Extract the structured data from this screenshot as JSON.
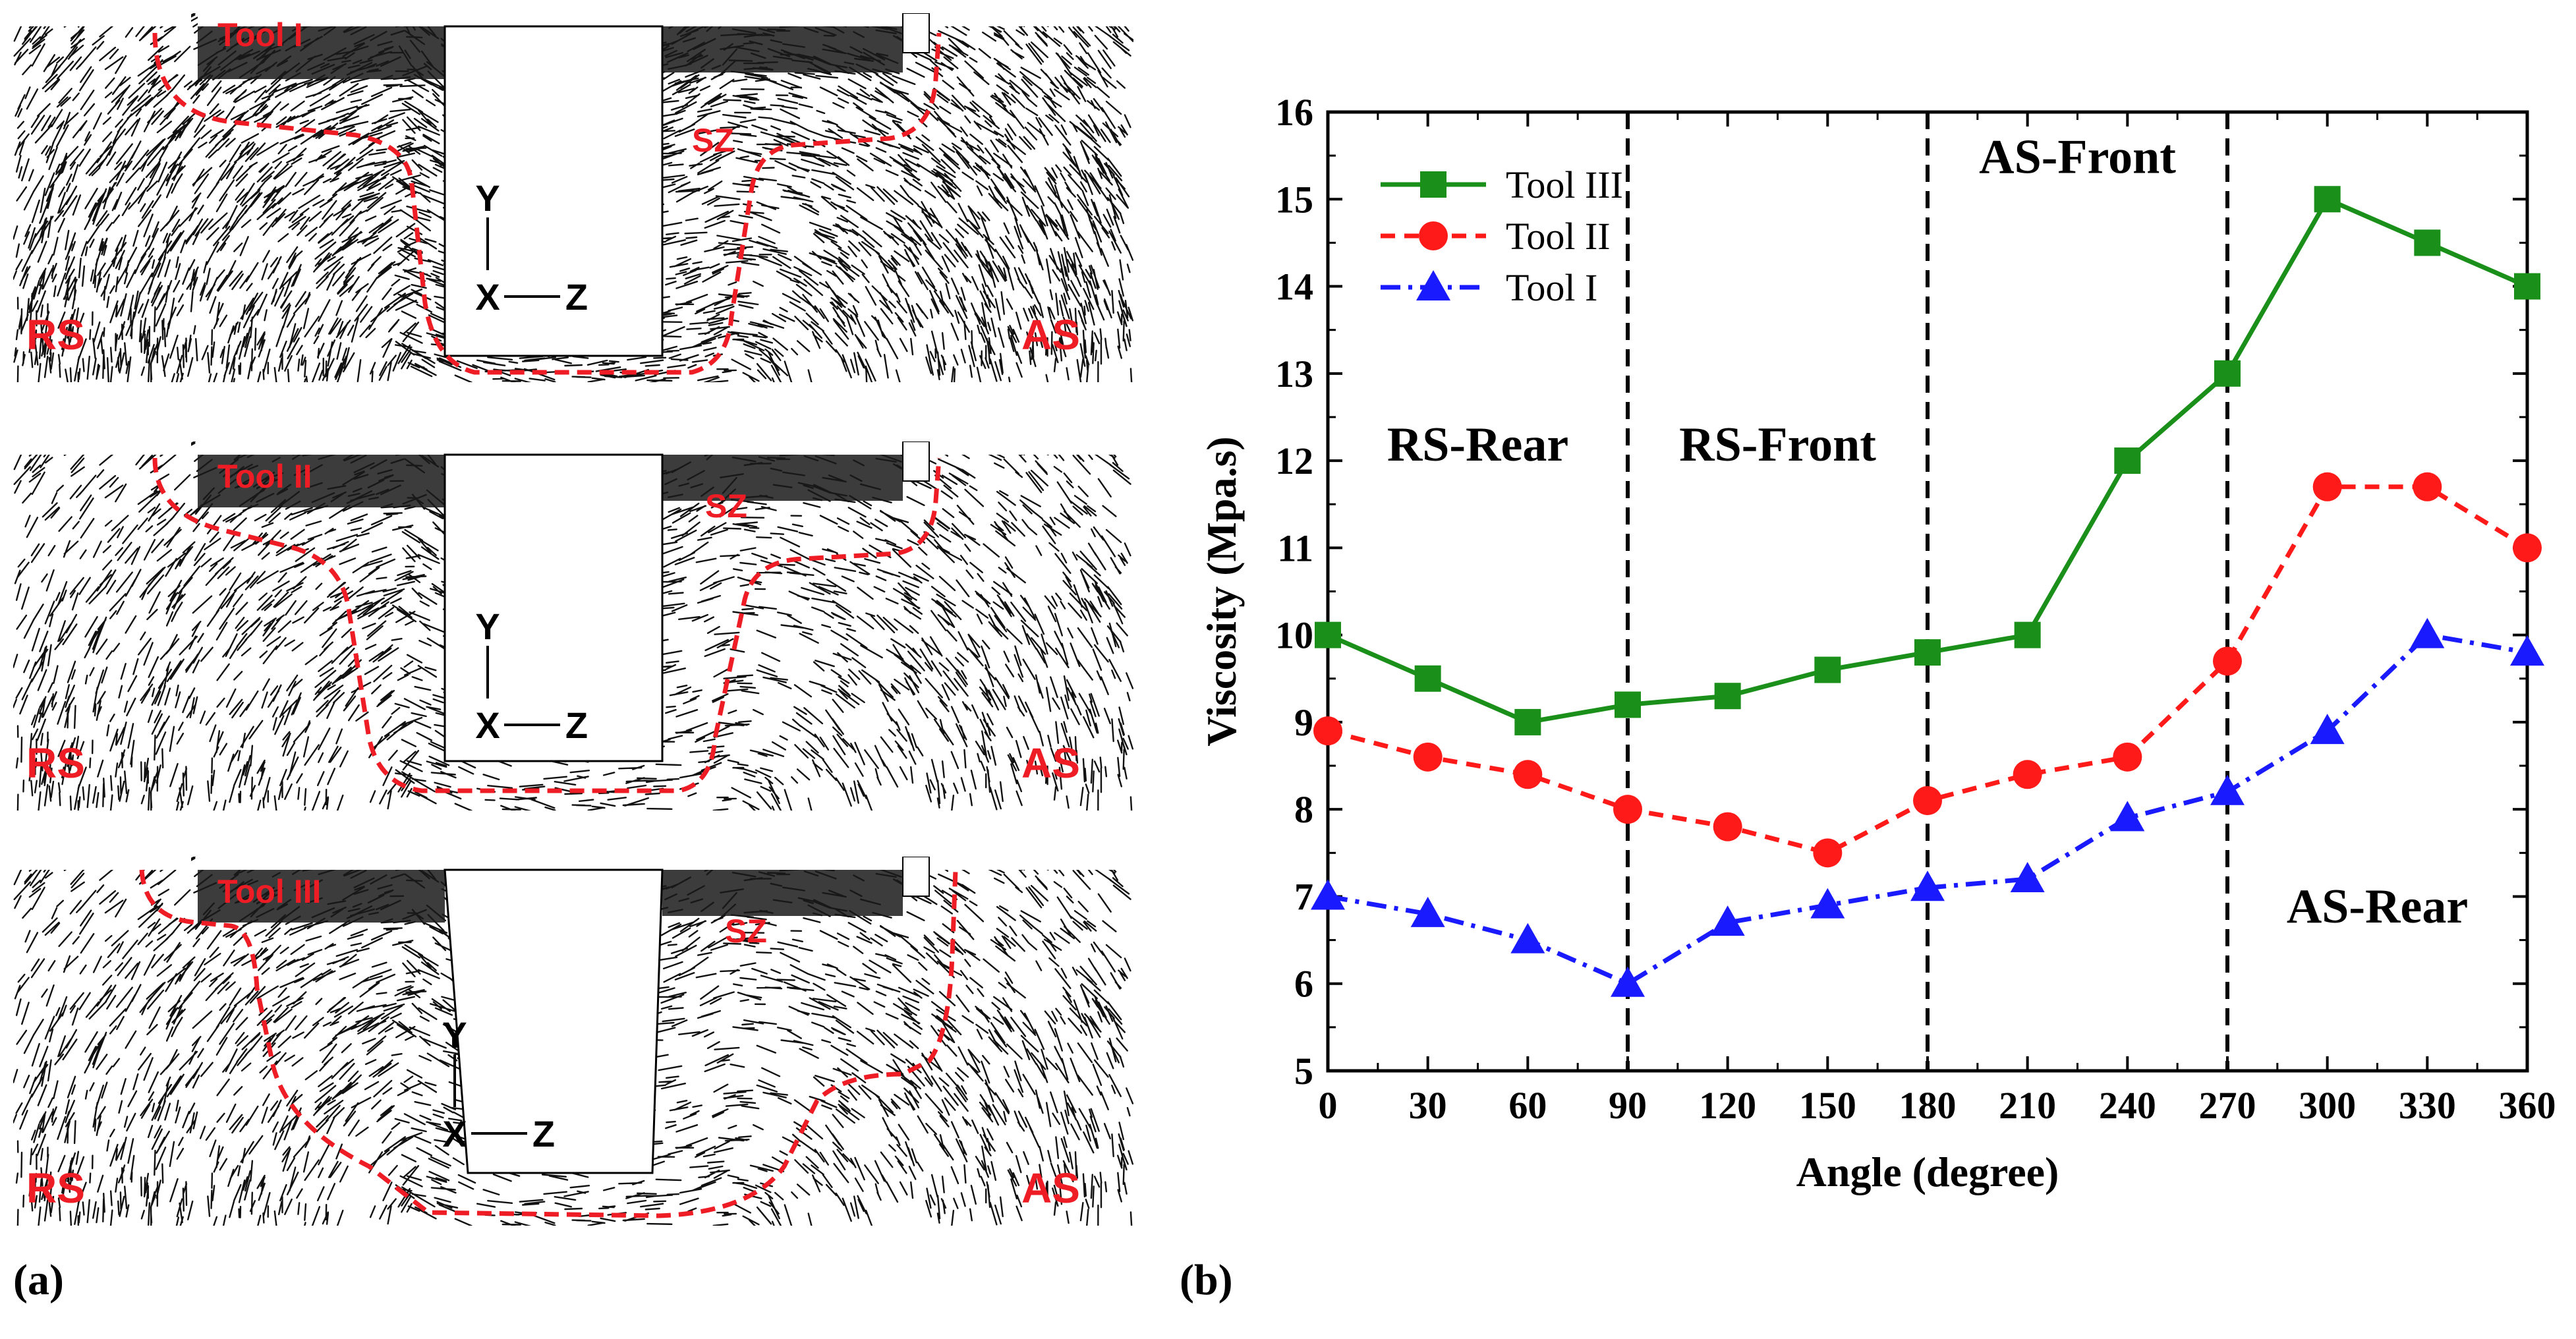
{
  "panel_a": {
    "letter": "(a)",
    "panels": [
      {
        "tool": "Tool I",
        "left": "RS",
        "right": "AS",
        "zone": "SZ",
        "axis_y": "Y",
        "axis_x": "X",
        "axis_z": "Z"
      },
      {
        "tool": "Tool II",
        "left": "RS",
        "right": "AS",
        "zone": "SZ",
        "axis_y": "Y",
        "axis_x": "X",
        "axis_z": "Z"
      },
      {
        "tool": "Tool III",
        "left": "RS",
        "right": "AS",
        "zone": "SZ",
        "axis_y": "Y",
        "axis_x": "X",
        "axis_z": "Z"
      }
    ]
  },
  "panel_b": {
    "letter": "(b)"
  },
  "chart_data": {
    "type": "line",
    "xlabel": "Angle (degree)",
    "ylabel": "Viscosity (Mpa.s)",
    "x": [
      0,
      30,
      60,
      90,
      120,
      150,
      180,
      210,
      240,
      270,
      300,
      330,
      360
    ],
    "xlim": [
      0,
      360
    ],
    "ylim": [
      5,
      16
    ],
    "xticks": [
      0,
      30,
      60,
      90,
      120,
      150,
      180,
      210,
      240,
      270,
      300,
      330,
      360
    ],
    "yticks": [
      5,
      6,
      7,
      8,
      9,
      10,
      11,
      12,
      13,
      14,
      15,
      16
    ],
    "series": [
      {
        "name": "Tool III",
        "color": "#1a8f1a",
        "marker": "square",
        "dash": "solid",
        "values": [
          10,
          9.5,
          9,
          9.2,
          9.3,
          9.6,
          9.8,
          10,
          12,
          13,
          15,
          14.5,
          14
        ]
      },
      {
        "name": "Tool II",
        "color": "#ff1a1a",
        "marker": "circle",
        "dash": "dash",
        "values": [
          8.9,
          8.6,
          8.4,
          8,
          7.8,
          7.5,
          8.1,
          8.4,
          8.6,
          9.7,
          11.7,
          11.7,
          11
        ]
      },
      {
        "name": "Tool I",
        "color": "#1a1aff",
        "marker": "triangle",
        "dash": "dashdot",
        "values": [
          7,
          6.8,
          6.5,
          6,
          6.7,
          6.9,
          7.1,
          7.2,
          7.9,
          8.2,
          8.9,
          10,
          9.8
        ]
      }
    ],
    "vlines": [
      90,
      180,
      270
    ],
    "region_labels": [
      {
        "text": "RS-Rear",
        "x": 45,
        "y": 12
      },
      {
        "text": "RS-Front",
        "x": 135,
        "y": 12
      },
      {
        "text": "AS-Front",
        "x": 225,
        "y": 15.3
      },
      {
        "text": "AS-Rear",
        "x": 315,
        "y": 6.7
      }
    ],
    "legend": "top-left"
  }
}
